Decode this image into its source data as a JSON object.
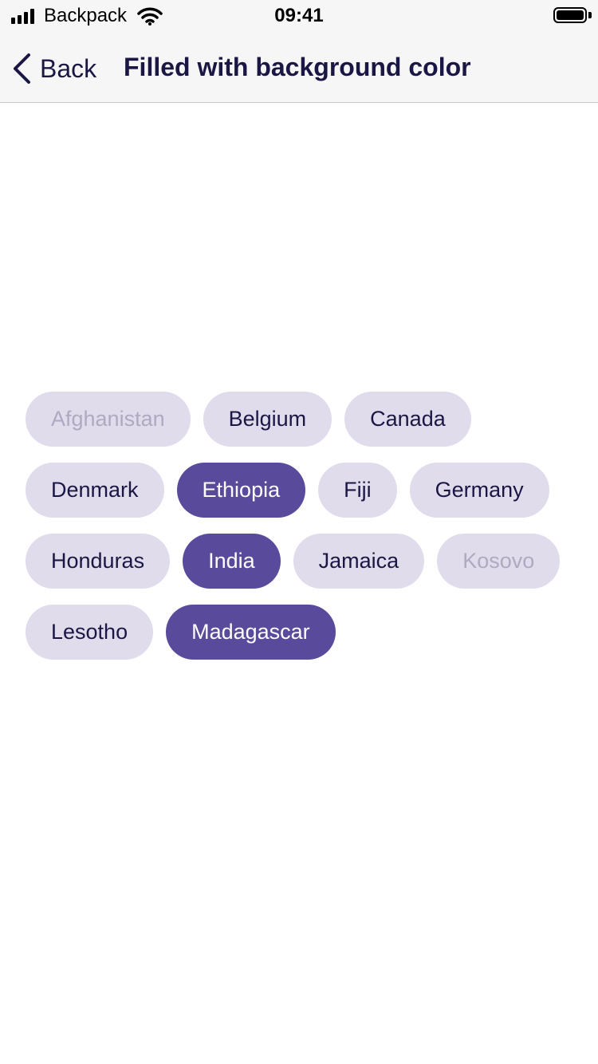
{
  "status_bar": {
    "carrier": "Backpack",
    "time": "09:41"
  },
  "nav": {
    "back_label": "Back",
    "title": "Filled with background color"
  },
  "colors": {
    "chip_background": "#e0dcec",
    "chip_selected": "#5a4a9c",
    "chip_text": "#1b1744",
    "chip_disabled_text": "#aeaac1"
  },
  "chips": [
    {
      "label": "Afghanistan",
      "state": "disabled"
    },
    {
      "label": "Belgium",
      "state": "default"
    },
    {
      "label": "Canada",
      "state": "default"
    },
    {
      "label": "Denmark",
      "state": "default"
    },
    {
      "label": "Ethiopia",
      "state": "selected"
    },
    {
      "label": "Fiji",
      "state": "default"
    },
    {
      "label": "Germany",
      "state": "default"
    },
    {
      "label": "Honduras",
      "state": "default"
    },
    {
      "label": "India",
      "state": "selected"
    },
    {
      "label": "Jamaica",
      "state": "default"
    },
    {
      "label": "Kosovo",
      "state": "disabled"
    },
    {
      "label": "Lesotho",
      "state": "default"
    },
    {
      "label": "Madagascar",
      "state": "selected"
    }
  ]
}
